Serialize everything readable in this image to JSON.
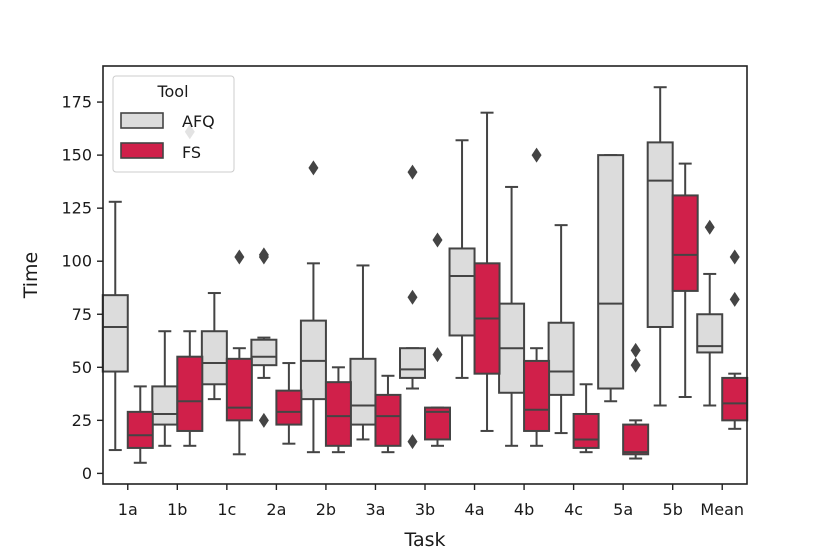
{
  "chart_data": {
    "type": "boxplot",
    "title": "",
    "xlabel": "Task",
    "ylabel": "Time",
    "ylim": [
      -5,
      192
    ],
    "yticks": [
      0,
      25,
      50,
      75,
      100,
      125,
      150,
      175
    ],
    "categories": [
      "1a",
      "1b",
      "1c",
      "2a",
      "2b",
      "3a",
      "3b",
      "4a",
      "4b",
      "4c",
      "5a",
      "5b",
      "Mean"
    ],
    "legend": {
      "title": "Tool",
      "placement": "top-left"
    },
    "series": [
      {
        "name": "AFQ",
        "color": "#dcdcdc",
        "boxes": [
          {
            "whislo": 11,
            "q1": 48,
            "med": 69,
            "q3": 84,
            "whishi": 128,
            "fliers": []
          },
          {
            "whislo": 13,
            "q1": 23,
            "med": 28,
            "q3": 41,
            "whishi": 67,
            "fliers": []
          },
          {
            "whislo": 35,
            "q1": 42,
            "med": 52,
            "q3": 67,
            "whishi": 85,
            "fliers": []
          },
          {
            "whislo": 45,
            "q1": 51,
            "med": 55,
            "q3": 63,
            "whishi": 64,
            "fliers": [
              25,
              102,
              103
            ]
          },
          {
            "whislo": 10,
            "q1": 35,
            "med": 53,
            "q3": 72,
            "whishi": 99,
            "fliers": [
              144
            ]
          },
          {
            "whislo": 16,
            "q1": 23,
            "med": 32,
            "q3": 54,
            "whishi": 98,
            "fliers": []
          },
          {
            "whislo": 40,
            "q1": 45,
            "med": 49,
            "q3": 59,
            "whishi": 59,
            "fliers": [
              15,
              83,
              142
            ]
          },
          {
            "whislo": 45,
            "q1": 65,
            "med": 93,
            "q3": 106,
            "whishi": 157,
            "fliers": []
          },
          {
            "whislo": 13,
            "q1": 38,
            "med": 59,
            "q3": 80,
            "whishi": 135,
            "fliers": []
          },
          {
            "whislo": 19,
            "q1": 37,
            "med": 48,
            "q3": 71,
            "whishi": 117,
            "fliers": []
          },
          {
            "whislo": 34,
            "q1": 40,
            "med": 80,
            "q3": 150,
            "whishi": 150,
            "fliers": []
          },
          {
            "whislo": 32,
            "q1": 69,
            "med": 138,
            "q3": 156,
            "whishi": 182,
            "fliers": []
          },
          {
            "whislo": 32,
            "q1": 57,
            "med": 60,
            "q3": 75,
            "whishi": 94,
            "fliers": [
              116
            ]
          }
        ]
      },
      {
        "name": "FS",
        "color": "#d0204a",
        "boxes": [
          {
            "whislo": 5,
            "q1": 12,
            "med": 18,
            "q3": 29,
            "whishi": 41,
            "fliers": []
          },
          {
            "whislo": 13,
            "q1": 20,
            "med": 34,
            "q3": 55,
            "whishi": 67,
            "fliers": [
              161
            ]
          },
          {
            "whislo": 9,
            "q1": 25,
            "med": 31,
            "q3": 54,
            "whishi": 59,
            "fliers": [
              102
            ]
          },
          {
            "whislo": 14,
            "q1": 23,
            "med": 29,
            "q3": 39,
            "whishi": 52,
            "fliers": []
          },
          {
            "whislo": 10,
            "q1": 13,
            "med": 27,
            "q3": 43,
            "whishi": 50,
            "fliers": []
          },
          {
            "whislo": 10,
            "q1": 13,
            "med": 27,
            "q3": 37,
            "whishi": 46,
            "fliers": []
          },
          {
            "whislo": 13,
            "q1": 16,
            "med": 29,
            "q3": 31,
            "whishi": 31,
            "fliers": [
              56,
              110
            ]
          },
          {
            "whislo": 20,
            "q1": 47,
            "med": 73,
            "q3": 99,
            "whishi": 170,
            "fliers": []
          },
          {
            "whislo": 13,
            "q1": 20,
            "med": 30,
            "q3": 53,
            "whishi": 59,
            "fliers": [
              150
            ]
          },
          {
            "whislo": 10,
            "q1": 12,
            "med": 16,
            "q3": 28,
            "whishi": 42,
            "fliers": []
          },
          {
            "whislo": 7,
            "q1": 9,
            "med": 10,
            "q3": 23,
            "whishi": 25,
            "fliers": [
              51,
              58
            ]
          },
          {
            "whislo": 36,
            "q1": 86,
            "med": 103,
            "q3": 131,
            "whishi": 146,
            "fliers": []
          },
          {
            "whislo": 21,
            "q1": 25,
            "med": 33,
            "q3": 45,
            "whishi": 47,
            "fliers": [
              82,
              102
            ]
          }
        ]
      }
    ]
  }
}
